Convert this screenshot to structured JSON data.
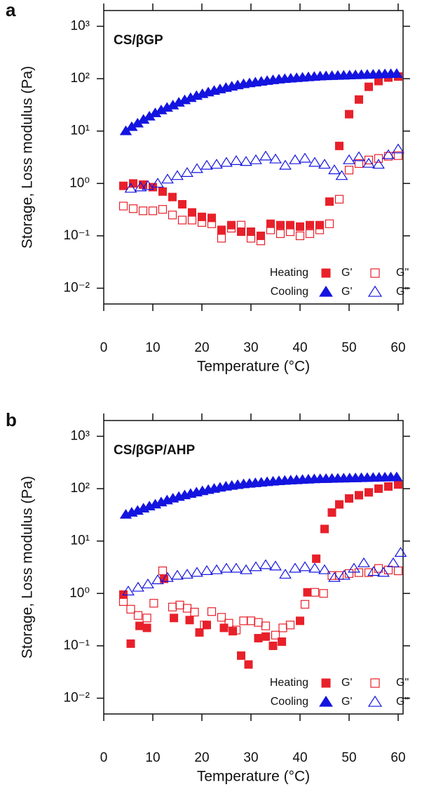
{
  "chart_data": [
    {
      "type": "scatter",
      "panel": "a",
      "title": "CS/βGP",
      "xlabel": "Temperature (°C)",
      "ylabel": "Storage, Loss modulus (Pa)",
      "yscale": "log",
      "xlim": [
        0,
        61
      ],
      "ylim": [
        0.005,
        2000
      ],
      "xticks": [
        0,
        10,
        20,
        30,
        40,
        50,
        60
      ],
      "yticks": [
        {
          "value": 0.01,
          "label": "10⁻²"
        },
        {
          "value": 0.1,
          "label": "10⁻¹"
        },
        {
          "value": 1,
          "label": "10⁰"
        },
        {
          "value": 10,
          "label": "10¹"
        },
        {
          "value": 100,
          "label": "10²"
        },
        {
          "value": 1000,
          "label": "10³"
        }
      ],
      "series": [
        {
          "group": "Heating",
          "name": "G'",
          "color": "#e8202a",
          "marker": "square",
          "filled": true,
          "x": [
            4,
            6,
            8,
            10,
            12,
            14,
            16,
            18,
            20,
            22,
            24,
            26,
            28,
            30,
            32,
            34,
            36,
            38,
            40,
            42,
            44,
            46,
            48,
            50,
            52,
            54,
            56,
            58,
            60
          ],
          "values": [
            0.9,
            1.0,
            0.95,
            0.85,
            0.7,
            0.55,
            0.4,
            0.28,
            0.23,
            0.22,
            0.13,
            0.16,
            0.12,
            0.12,
            0.1,
            0.17,
            0.16,
            0.16,
            0.15,
            0.16,
            0.16,
            0.45,
            5.2,
            21,
            40,
            70,
            90,
            105,
            110
          ]
        },
        {
          "group": "Heating",
          "name": "G\"",
          "color": "#e8202a",
          "marker": "square",
          "filled": false,
          "x": [
            4,
            6,
            8,
            10,
            12,
            14,
            16,
            18,
            20,
            22,
            24,
            26,
            28,
            30,
            32,
            34,
            36,
            38,
            40,
            42,
            44,
            46,
            48,
            50,
            52,
            54,
            56,
            58,
            60
          ],
          "values": [
            0.37,
            0.33,
            0.3,
            0.3,
            0.32,
            0.25,
            0.2,
            0.2,
            0.18,
            0.17,
            0.09,
            0.14,
            0.16,
            0.09,
            0.08,
            0.13,
            0.11,
            0.12,
            0.1,
            0.11,
            0.13,
            0.17,
            0.5,
            1.8,
            2.4,
            2.8,
            3.0,
            3.3,
            3.4
          ]
        },
        {
          "group": "Cooling",
          "name": "G'",
          "color": "#1414e0",
          "marker": "triangle",
          "filled": true,
          "x": [
            4.5,
            5.7,
            6.9,
            8.1,
            9.3,
            10.5,
            11.7,
            12.9,
            14.1,
            15.3,
            16.5,
            17.7,
            18.9,
            20.1,
            21.3,
            22.5,
            23.7,
            24.9,
            26.1,
            27.3,
            28.5,
            29.7,
            30.9,
            32.1,
            33.3,
            34.5,
            35.7,
            36.9,
            38.1,
            39.3,
            40.5,
            41.7,
            42.9,
            44.1,
            45.3,
            46.5,
            47.7,
            48.9,
            50.1,
            51.3,
            52.5,
            53.7,
            54.9,
            56.1,
            57.3,
            58.5,
            59.7
          ],
          "values": [
            10,
            12,
            14,
            16.5,
            19,
            22,
            25,
            28,
            31,
            35,
            39,
            43,
            47,
            51,
            55,
            59,
            63,
            67,
            71,
            75,
            79,
            82,
            85,
            88,
            91,
            94,
            97,
            99,
            101,
            103,
            105,
            107,
            109,
            111,
            112,
            113,
            114,
            115,
            116,
            117,
            118,
            119,
            120,
            121,
            122,
            123,
            124
          ]
        },
        {
          "group": "Cooling",
          "name": "G\"",
          "color": "#1414e0",
          "marker": "triangle",
          "filled": false,
          "x": [
            5.5,
            7.5,
            9,
            11,
            13,
            15,
            17,
            19,
            21,
            23,
            25,
            27,
            29,
            31,
            33,
            35,
            37,
            39,
            41,
            43,
            45,
            47,
            48.5,
            50,
            52,
            54,
            56,
            58,
            60
          ],
          "values": [
            0.8,
            0.85,
            0.9,
            1.0,
            1.2,
            1.4,
            1.6,
            1.9,
            2.2,
            2.3,
            2.5,
            2.7,
            2.6,
            2.8,
            3.3,
            2.9,
            2.2,
            2.8,
            3.0,
            2.5,
            2.3,
            1.8,
            1.4,
            2.8,
            3.2,
            2.4,
            2.3,
            3.5,
            4.5
          ]
        }
      ]
    },
    {
      "type": "scatter",
      "panel": "b",
      "title": "CS/βGP/AHP",
      "xlabel": "Temperature (°C)",
      "ylabel": "Storage, Loss modulus (Pa)",
      "yscale": "log",
      "xlim": [
        0,
        61
      ],
      "ylim": [
        0.005,
        2000
      ],
      "xticks": [
        0,
        10,
        20,
        30,
        40,
        50,
        60
      ],
      "yticks": [
        {
          "value": 0.01,
          "label": "10⁻²"
        },
        {
          "value": 0.1,
          "label": "10⁻¹"
        },
        {
          "value": 1,
          "label": "10⁰"
        },
        {
          "value": 10,
          "label": "10¹"
        },
        {
          "value": 100,
          "label": "10²"
        },
        {
          "value": 1000,
          "label": "10³"
        }
      ],
      "series": [
        {
          "group": "Heating",
          "name": "G'",
          "color": "#e8202a",
          "marker": "square",
          "filled": true,
          "x": [
            4,
            5.5,
            7.3,
            8.8,
            12.3,
            14.3,
            17.5,
            19.5,
            21,
            24.5,
            26.3,
            28,
            29.5,
            31.5,
            33,
            34.5,
            36.3,
            40,
            41.5,
            43.3,
            45,
            46.5,
            48,
            50,
            52,
            54,
            56,
            58,
            60
          ],
          "values": [
            0.95,
            0.11,
            0.24,
            0.22,
            1.9,
            0.34,
            0.31,
            0.18,
            0.25,
            0.22,
            0.19,
            0.065,
            0.044,
            0.14,
            0.15,
            0.1,
            0.12,
            0.3,
            1.05,
            4.6,
            17,
            35,
            50,
            65,
            75,
            85,
            100,
            110,
            120
          ]
        },
        {
          "group": "Heating",
          "name": "G\"",
          "color": "#e8202a",
          "marker": "square",
          "filled": false,
          "x": [
            4,
            5.5,
            7,
            8.8,
            10.2,
            12,
            14,
            15.5,
            17,
            18.5,
            20.5,
            22,
            24,
            25.5,
            27,
            28.5,
            30,
            31.5,
            33,
            35,
            36.5,
            38,
            41,
            43,
            44.8,
            46.5,
            48,
            50,
            52,
            54,
            56,
            58,
            60
          ],
          "values": [
            0.7,
            0.5,
            0.38,
            0.34,
            0.65,
            2.7,
            0.55,
            0.6,
            0.52,
            0.44,
            0.25,
            0.45,
            0.35,
            0.27,
            0.2,
            0.3,
            0.3,
            0.28,
            0.24,
            0.16,
            0.22,
            0.25,
            0.62,
            1.05,
            1.0,
            2.2,
            2.2,
            2.4,
            2.5,
            2.5,
            3.0,
            2.8,
            2.7
          ]
        },
        {
          "group": "Cooling",
          "name": "G'",
          "color": "#1414e0",
          "marker": "triangle",
          "filled": true,
          "x": [
            4.5,
            5.7,
            6.9,
            8.1,
            9.3,
            10.5,
            11.7,
            12.9,
            14.1,
            15.3,
            16.5,
            17.7,
            18.9,
            20.1,
            21.3,
            22.5,
            23.7,
            24.9,
            26.1,
            27.3,
            28.5,
            29.7,
            30.9,
            32.1,
            33.3,
            34.5,
            35.7,
            36.9,
            38.1,
            39.3,
            40.5,
            41.7,
            42.9,
            44.1,
            45.3,
            46.5,
            47.7,
            48.9,
            50.1,
            51.3,
            52.5,
            53.7,
            54.9,
            56.1,
            57.3,
            58.5,
            59.7
          ],
          "values": [
            32,
            35,
            38,
            42,
            46,
            50,
            55,
            60,
            65,
            70,
            75,
            80,
            85,
            90,
            95,
            100,
            105,
            110,
            114,
            118,
            122,
            125,
            128,
            131,
            134,
            137,
            140,
            142,
            144,
            146,
            148,
            150,
            152,
            153,
            154,
            155,
            156,
            157,
            158,
            159,
            160,
            161,
            162,
            163,
            164,
            165,
            166
          ]
        },
        {
          "group": "Cooling",
          "name": "G\"",
          "color": "#1414e0",
          "marker": "triangle",
          "filled": false,
          "x": [
            5,
            7,
            9,
            11,
            13,
            15,
            17,
            19,
            21,
            23,
            25,
            27,
            29,
            31,
            33,
            35,
            37,
            39,
            41,
            43,
            45,
            47,
            49,
            51,
            53,
            55,
            57,
            59,
            60.5
          ],
          "values": [
            1.1,
            1.3,
            1.5,
            1.8,
            2.0,
            2.2,
            2.3,
            2.5,
            2.7,
            2.8,
            3.0,
            3.0,
            2.8,
            3.2,
            3.5,
            3.3,
            2.3,
            3.0,
            3.2,
            3.0,
            2.8,
            2.0,
            2.2,
            3.0,
            3.8,
            2.6,
            2.5,
            3.8,
            6.0
          ]
        }
      ]
    }
  ]
}
